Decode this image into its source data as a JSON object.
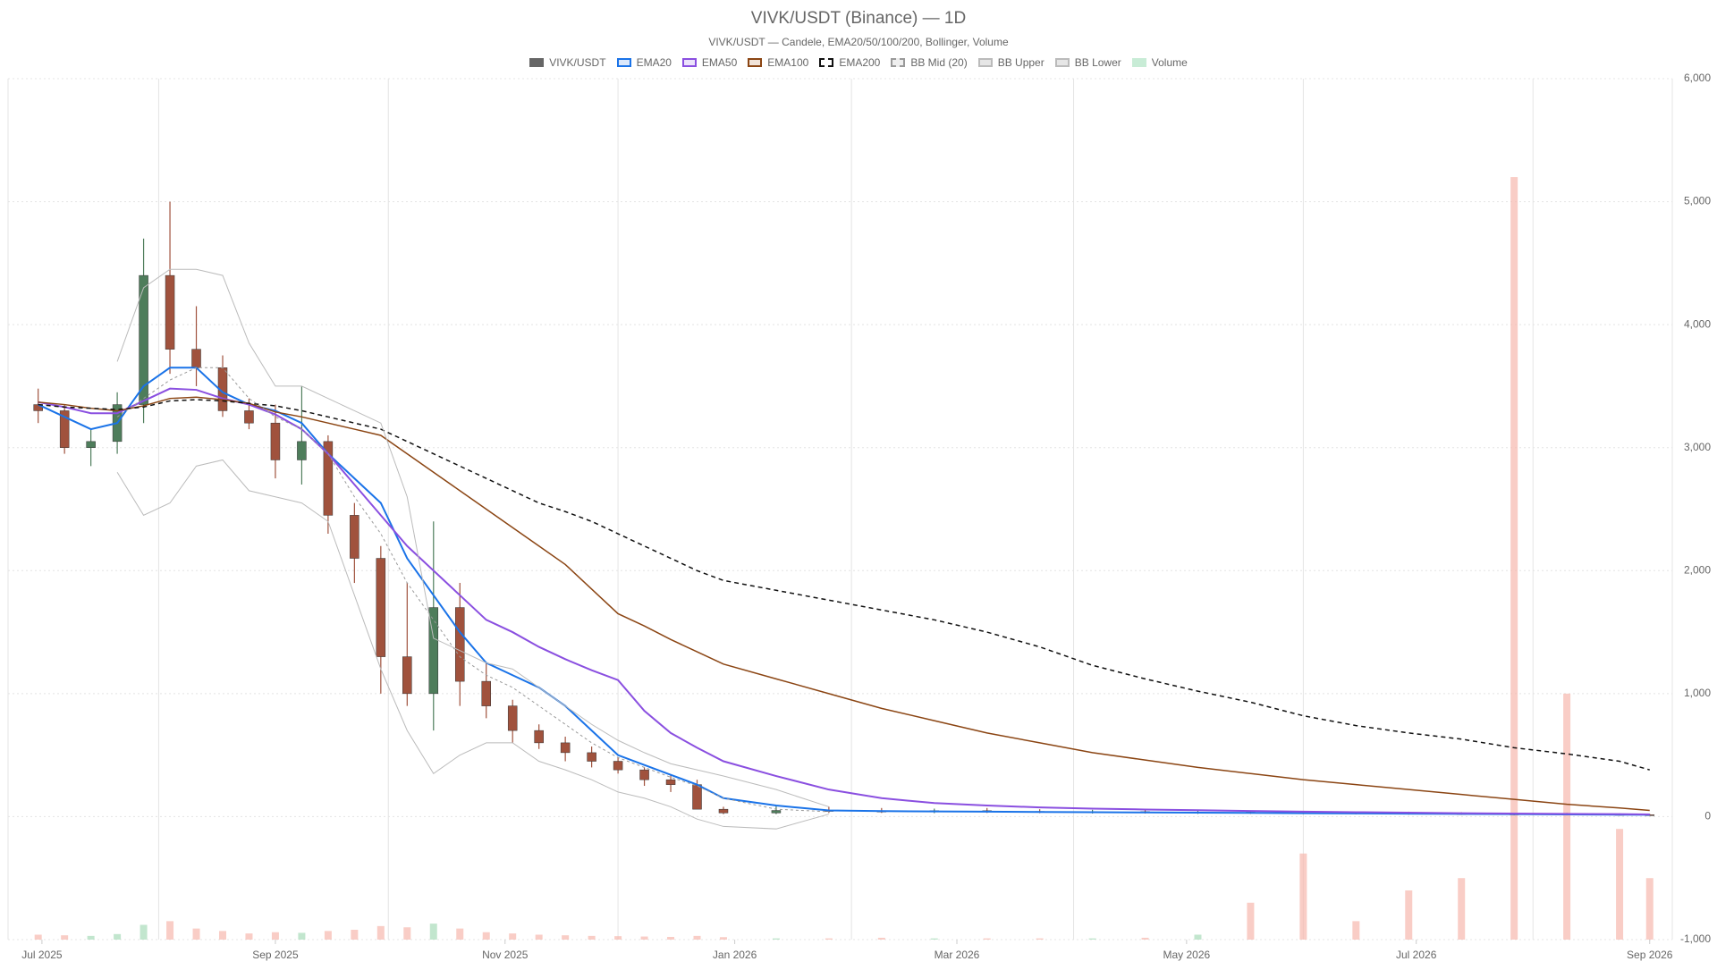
{
  "chart_data": {
    "type": "candlestick",
    "title": "VIVK/USDT (Binance) — 1D",
    "subtitle": "VIVK/USDT — Candele, EMA20/50/100/200, Bollinger, Volume",
    "x": [
      "2025-06-30",
      "2025-07-07",
      "2025-07-14",
      "2025-07-21",
      "2025-07-28",
      "2025-08-04",
      "2025-08-11",
      "2025-08-18",
      "2025-08-25",
      "2025-09-01",
      "2025-09-08",
      "2025-09-15",
      "2025-09-22",
      "2025-09-29",
      "2025-10-06",
      "2025-10-13",
      "2025-10-20",
      "2025-10-27",
      "2025-11-03",
      "2025-11-10",
      "2025-11-17",
      "2025-11-24",
      "2025-12-01",
      "2025-12-08",
      "2025-12-15",
      "2025-12-22",
      "2025-12-29",
      "2026-01-12",
      "2026-01-26",
      "2026-02-09",
      "2026-02-23",
      "2026-03-09",
      "2026-03-23",
      "2026-04-06",
      "2026-04-20",
      "2026-05-04",
      "2026-05-18",
      "2026-06-01",
      "2026-06-15",
      "2026-06-29",
      "2026-07-13",
      "2026-07-27",
      "2026-08-10",
      "2026-08-24",
      "2026-09-01"
    ],
    "xlim": [
      "2025-06-22",
      "2026-09-07"
    ],
    "xticks": [
      {
        "value": "2025-07-01",
        "label": "Jul 2025"
      },
      {
        "value": "2025-09-01",
        "label": "Sep 2025"
      },
      {
        "value": "2025-11-01",
        "label": "Nov 2025"
      },
      {
        "value": "2026-01-01",
        "label": "Jan 2026"
      },
      {
        "value": "2026-03-01",
        "label": "Mar 2026"
      },
      {
        "value": "2026-05-01",
        "label": "May 2026"
      },
      {
        "value": "2026-07-01",
        "label": "Jul 2026"
      },
      {
        "value": "2026-09-01",
        "label": "Sep 2026"
      }
    ],
    "xgrid": [
      "2025-08-01",
      "2025-10-01",
      "2025-12-01",
      "2026-02-01",
      "2026-04-01",
      "2026-06-01",
      "2026-08-01"
    ],
    "ylim": [
      -1000,
      6000
    ],
    "yticks": [
      {
        "value": -1000,
        "label": "-1,000"
      },
      0,
      {
        "value": 1000,
        "label": "1,000"
      },
      {
        "value": 2000,
        "label": "2,000"
      },
      {
        "value": 3000,
        "label": "3,000"
      },
      {
        "value": 4000,
        "label": "4,000"
      },
      {
        "value": 5000,
        "label": "5,000"
      },
      {
        "value": 6000,
        "label": "6,000"
      }
    ],
    "y2lim": [
      0,
      7000
    ],
    "grid": true,
    "candles": {
      "name": "VIVK/USDT",
      "color": "#666666",
      "up_color": "#4e7d5b",
      "down_color": "#a0523d",
      "open": [
        3350,
        3300,
        3000,
        3050,
        3350,
        4400,
        3800,
        3650,
        3300,
        3200,
        2900,
        3050,
        2450,
        2100,
        1300,
        1000,
        1700,
        1100,
        900,
        700,
        600,
        520,
        450,
        380,
        300,
        260,
        60,
        30,
        50,
        45,
        40,
        48,
        42,
        38,
        40,
        35,
        36,
        32,
        30,
        28,
        25,
        22,
        20,
        18,
        15
      ],
      "high": [
        3480,
        3350,
        3150,
        3450,
        4700,
        5000,
        4150,
        3750,
        3400,
        3350,
        3500,
        3100,
        2550,
        2200,
        1900,
        2400,
        1900,
        1250,
        950,
        750,
        650,
        570,
        480,
        400,
        340,
        300,
        80,
        90,
        80,
        70,
        65,
        70,
        60,
        55,
        55,
        50,
        50,
        45,
        42,
        40,
        36,
        32,
        30,
        26,
        22
      ],
      "low": [
        3200,
        2950,
        2850,
        2950,
        3200,
        3600,
        3500,
        3250,
        3150,
        2750,
        2700,
        2300,
        1900,
        1000,
        900,
        700,
        900,
        800,
        600,
        550,
        450,
        400,
        350,
        250,
        200,
        100,
        20,
        20,
        30,
        30,
        28,
        30,
        28,
        25,
        25,
        22,
        22,
        20,
        18,
        16,
        14,
        12,
        10,
        9,
        8
      ],
      "close": [
        3300,
        3000,
        3050,
        3350,
        4400,
        3800,
        3650,
        3300,
        3200,
        2900,
        3050,
        2450,
        2100,
        1300,
        1000,
        1700,
        1100,
        900,
        700,
        600,
        520,
        450,
        380,
        300,
        260,
        60,
        30,
        50,
        45,
        40,
        48,
        42,
        38,
        40,
        35,
        36,
        32,
        30,
        28,
        25,
        22,
        20,
        18,
        15,
        12
      ]
    },
    "series": [
      {
        "name": "EMA20",
        "color": "#1a73e8",
        "fill": "#dbe8fb",
        "width": 2,
        "values": [
          3350,
          3250,
          3150,
          3200,
          3500,
          3650,
          3650,
          3450,
          3350,
          3300,
          3200,
          2950,
          2750,
          2550,
          2100,
          1800,
          1500,
          1250,
          1150,
          1050,
          900,
          700,
          500,
          420,
          340,
          260,
          150,
          90,
          50,
          45,
          42,
          40,
          38,
          36,
          34,
          32,
          30,
          28,
          26,
          24,
          22,
          20,
          18,
          16,
          15
        ]
      },
      {
        "name": "EMA50",
        "color": "#8a4fe0",
        "fill": "#ece3fb",
        "width": 2,
        "values": [
          3370,
          3330,
          3280,
          3280,
          3380,
          3480,
          3470,
          3400,
          3350,
          3270,
          3150,
          2950,
          2700,
          2450,
          2200,
          2000,
          1800,
          1600,
          1500,
          1380,
          1280,
          1190,
          1110,
          860,
          680,
          560,
          450,
          330,
          220,
          150,
          110,
          90,
          75,
          65,
          58,
          52,
          46,
          40,
          36,
          32,
          28,
          25,
          22,
          20,
          18
        ]
      },
      {
        "name": "EMA100",
        "color": "#8b4513",
        "fill": "#f1e3d8",
        "width": 1.5,
        "values": [
          3370,
          3350,
          3320,
          3300,
          3340,
          3400,
          3410,
          3390,
          3360,
          3290,
          3250,
          3200,
          3150,
          3100,
          2950,
          2800,
          2650,
          2500,
          2350,
          2200,
          2050,
          1850,
          1650,
          1550,
          1440,
          1340,
          1240,
          1120,
          1000,
          880,
          780,
          680,
          600,
          520,
          460,
          400,
          350,
          300,
          260,
          220,
          180,
          140,
          100,
          70,
          50
        ]
      },
      {
        "name": "EMA200",
        "color": "#111111",
        "fill": "#ffffff",
        "width": 1.5,
        "dash": "5,4",
        "values": [
          3350,
          3330,
          3320,
          3310,
          3330,
          3380,
          3390,
          3380,
          3360,
          3340,
          3300,
          3250,
          3200,
          3150,
          3050,
          2950,
          2850,
          2750,
          2650,
          2550,
          2480,
          2400,
          2300,
          2200,
          2100,
          2000,
          1920,
          1840,
          1760,
          1680,
          1600,
          1500,
          1380,
          1230,
          1120,
          1020,
          930,
          820,
          740,
          680,
          630,
          560,
          510,
          450,
          380
        ]
      },
      {
        "name": "BB Mid (20)",
        "color": "#999999",
        "fill": "#eeeeee",
        "width": 1,
        "dash": "3,3",
        "values": [
          null,
          null,
          null,
          3250,
          3400,
          3550,
          3650,
          3650,
          3400,
          3250,
          3150,
          2950,
          2600,
          2300,
          1900,
          1600,
          1300,
          1150,
          1050,
          900,
          750,
          600,
          480,
          400,
          320,
          250,
          150,
          60,
          40,
          null,
          null,
          null,
          null,
          null,
          null,
          null,
          null,
          null,
          null,
          null,
          null,
          null,
          null,
          null,
          null
        ]
      },
      {
        "name": "BB Upper",
        "color": "#bbbbbb",
        "fill": "#e6e6e6",
        "width": 1,
        "values": [
          null,
          null,
          null,
          3700,
          4300,
          4450,
          4450,
          4400,
          3850,
          3500,
          3500,
          3400,
          3300,
          3200,
          2600,
          1450,
          1350,
          1250,
          1200,
          1050,
          900,
          750,
          620,
          520,
          430,
          380,
          330,
          220,
          80,
          null,
          null,
          null,
          null,
          null,
          null,
          null,
          null,
          null,
          null,
          null,
          null,
          null,
          null,
          null,
          null
        ]
      },
      {
        "name": "BB Lower",
        "color": "#bbbbbb",
        "fill": "#e6e6e6",
        "width": 1,
        "values": [
          null,
          null,
          null,
          2800,
          2450,
          2550,
          2850,
          2900,
          2650,
          2600,
          2550,
          2400,
          1800,
          1200,
          700,
          350,
          500,
          600,
          600,
          450,
          380,
          300,
          200,
          150,
          80,
          -20,
          -80,
          -100,
          20,
          null,
          null,
          null,
          null,
          null,
          null,
          null,
          null,
          null,
          null,
          null,
          null,
          null,
          null,
          null,
          null
        ]
      }
    ],
    "volume": {
      "name": "Volume",
      "axis": "y2",
      "color": "#c8ecd6",
      "up_color": "#a8dcb9",
      "down_color": "#f6b8ae",
      "values": [
        40,
        35,
        30,
        45,
        120,
        150,
        90,
        70,
        50,
        60,
        55,
        70,
        80,
        110,
        100,
        130,
        90,
        60,
        50,
        40,
        35,
        30,
        28,
        25,
        22,
        30,
        20,
        10,
        10,
        15,
        10,
        10,
        10,
        10,
        15,
        40,
        300,
        700,
        150,
        400,
        500,
        6200,
        2000,
        900,
        500
      ]
    }
  }
}
